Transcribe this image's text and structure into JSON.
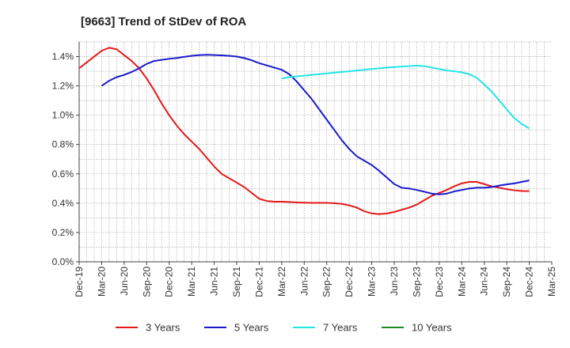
{
  "chart_data": {
    "type": "line",
    "title": "[9663]  Trend of StDev of ROA",
    "xlabel": "",
    "ylabel": "",
    "x_ticks": [
      "Dec-19",
      "Mar-20",
      "Jun-20",
      "Sep-20",
      "Dec-20",
      "Mar-21",
      "Jun-21",
      "Sep-21",
      "Dec-21",
      "Mar-22",
      "Jun-22",
      "Sep-22",
      "Dec-22",
      "Mar-23",
      "Jun-23",
      "Sep-23",
      "Dec-23",
      "Mar-24",
      "Jun-24",
      "Sep-24",
      "Dec-24",
      "Mar-25"
    ],
    "y_ticks": [
      "0.0%",
      "0.2%",
      "0.4%",
      "0.6%",
      "0.8%",
      "1.0%",
      "1.2%",
      "1.4%"
    ],
    "ylim": [
      0,
      1.5
    ],
    "y_unit": "%",
    "grid": true,
    "legend_position": "bottom",
    "series": [
      {
        "name": "3 Years",
        "color": "#e41a1a",
        "points": [
          [
            "Dec-19",
            1.32
          ],
          [
            "Jan-20",
            1.36
          ],
          [
            "Feb-20",
            1.4
          ],
          [
            "Mar-20",
            1.44
          ],
          [
            "Apr-20",
            1.46
          ],
          [
            "May-20",
            1.45
          ],
          [
            "Jun-20",
            1.41
          ],
          [
            "Jul-20",
            1.37
          ],
          [
            "Aug-20",
            1.32
          ],
          [
            "Sep-20",
            1.25
          ],
          [
            "Oct-20",
            1.17
          ],
          [
            "Nov-20",
            1.08
          ],
          [
            "Dec-20",
            1.0
          ],
          [
            "Jan-21",
            0.93
          ],
          [
            "Feb-21",
            0.87
          ],
          [
            "Mar-21",
            0.82
          ],
          [
            "Apr-21",
            0.77
          ],
          [
            "May-21",
            0.71
          ],
          [
            "Jun-21",
            0.65
          ],
          [
            "Jul-21",
            0.6
          ],
          [
            "Aug-21",
            0.57
          ],
          [
            "Sep-21",
            0.54
          ],
          [
            "Oct-21",
            0.51
          ],
          [
            "Nov-21",
            0.47
          ],
          [
            "Dec-21",
            0.43
          ],
          [
            "Jan-22",
            0.415
          ],
          [
            "Feb-22",
            0.41
          ],
          [
            "Mar-22",
            0.41
          ],
          [
            "Apr-22",
            0.408
          ],
          [
            "May-22",
            0.405
          ],
          [
            "Jun-22",
            0.403
          ],
          [
            "Jul-22",
            0.402
          ],
          [
            "Aug-22",
            0.402
          ],
          [
            "Sep-22",
            0.402
          ],
          [
            "Oct-22",
            0.4
          ],
          [
            "Nov-22",
            0.395
          ],
          [
            "Dec-22",
            0.385
          ],
          [
            "Jan-23",
            0.37
          ],
          [
            "Feb-23",
            0.345
          ],
          [
            "Mar-23",
            0.33
          ],
          [
            "Apr-23",
            0.325
          ],
          [
            "May-23",
            0.33
          ],
          [
            "Jun-23",
            0.34
          ],
          [
            "Jul-23",
            0.355
          ],
          [
            "Aug-23",
            0.37
          ],
          [
            "Sep-23",
            0.39
          ],
          [
            "Oct-23",
            0.42
          ],
          [
            "Nov-23",
            0.45
          ],
          [
            "Dec-23",
            0.47
          ],
          [
            "Jan-24",
            0.49
          ],
          [
            "Feb-24",
            0.515
          ],
          [
            "Mar-24",
            0.535
          ],
          [
            "Apr-24",
            0.545
          ],
          [
            "May-24",
            0.545
          ],
          [
            "Jun-24",
            0.53
          ],
          [
            "Jul-24",
            0.515
          ],
          [
            "Aug-24",
            0.505
          ],
          [
            "Sep-24",
            0.495
          ],
          [
            "Oct-24",
            0.488
          ],
          [
            "Nov-24",
            0.483
          ],
          [
            "Dec-24",
            0.482
          ]
        ]
      },
      {
        "name": "5 Years",
        "color": "#1a1acc",
        "points": [
          [
            "Mar-20",
            1.2
          ],
          [
            "Apr-20",
            1.235
          ],
          [
            "May-20",
            1.26
          ],
          [
            "Jun-20",
            1.275
          ],
          [
            "Jul-20",
            1.295
          ],
          [
            "Aug-20",
            1.32
          ],
          [
            "Sep-20",
            1.35
          ],
          [
            "Oct-20",
            1.37
          ],
          [
            "Nov-20",
            1.378
          ],
          [
            "Dec-20",
            1.385
          ],
          [
            "Jan-21",
            1.39
          ],
          [
            "Feb-21",
            1.398
          ],
          [
            "Mar-21",
            1.405
          ],
          [
            "Apr-21",
            1.41
          ],
          [
            "May-21",
            1.412
          ],
          [
            "Jun-21",
            1.41
          ],
          [
            "Jul-21",
            1.408
          ],
          [
            "Aug-21",
            1.405
          ],
          [
            "Sep-21",
            1.4
          ],
          [
            "Oct-21",
            1.39
          ],
          [
            "Nov-21",
            1.375
          ],
          [
            "Dec-21",
            1.355
          ],
          [
            "Jan-22",
            1.34
          ],
          [
            "Feb-22",
            1.325
          ],
          [
            "Mar-22",
            1.31
          ],
          [
            "Apr-22",
            1.28
          ],
          [
            "May-22",
            1.23
          ],
          [
            "Jun-22",
            1.17
          ],
          [
            "Jul-22",
            1.11
          ],
          [
            "Aug-22",
            1.04
          ],
          [
            "Sep-22",
            0.97
          ],
          [
            "Oct-22",
            0.9
          ],
          [
            "Nov-22",
            0.83
          ],
          [
            "Dec-22",
            0.77
          ],
          [
            "Jan-23",
            0.72
          ],
          [
            "Feb-23",
            0.69
          ],
          [
            "Mar-23",
            0.66
          ],
          [
            "Apr-23",
            0.62
          ],
          [
            "May-23",
            0.575
          ],
          [
            "Jun-23",
            0.53
          ],
          [
            "Jul-23",
            0.505
          ],
          [
            "Aug-23",
            0.5
          ],
          [
            "Sep-23",
            0.49
          ],
          [
            "Oct-23",
            0.478
          ],
          [
            "Nov-23",
            0.465
          ],
          [
            "Dec-23",
            0.46
          ],
          [
            "Jan-24",
            0.465
          ],
          [
            "Feb-24",
            0.48
          ],
          [
            "Mar-24",
            0.49
          ],
          [
            "Apr-24",
            0.5
          ],
          [
            "May-24",
            0.505
          ],
          [
            "Jun-24",
            0.505
          ],
          [
            "Jul-24",
            0.51
          ],
          [
            "Aug-24",
            0.52
          ],
          [
            "Sep-24",
            0.528
          ],
          [
            "Oct-24",
            0.535
          ],
          [
            "Nov-24",
            0.545
          ],
          [
            "Dec-24",
            0.555
          ]
        ]
      },
      {
        "name": "7 Years",
        "color": "#22e5e5",
        "points": [
          [
            "Mar-22",
            1.25
          ],
          [
            "Apr-22",
            1.26
          ],
          [
            "May-22",
            1.265
          ],
          [
            "Jun-22",
            1.27
          ],
          [
            "Jul-22",
            1.275
          ],
          [
            "Aug-22",
            1.28
          ],
          [
            "Sep-22",
            1.285
          ],
          [
            "Oct-22",
            1.29
          ],
          [
            "Nov-22",
            1.295
          ],
          [
            "Dec-22",
            1.3
          ],
          [
            "Jan-23",
            1.305
          ],
          [
            "Feb-23",
            1.31
          ],
          [
            "Mar-23",
            1.315
          ],
          [
            "Apr-23",
            1.32
          ],
          [
            "May-23",
            1.325
          ],
          [
            "Jun-23",
            1.328
          ],
          [
            "Jul-23",
            1.332
          ],
          [
            "Aug-23",
            1.335
          ],
          [
            "Sep-23",
            1.338
          ],
          [
            "Oct-23",
            1.335
          ],
          [
            "Nov-23",
            1.325
          ],
          [
            "Dec-23",
            1.315
          ],
          [
            "Jan-24",
            1.305
          ],
          [
            "Feb-24",
            1.3
          ],
          [
            "Mar-24",
            1.292
          ],
          [
            "Apr-24",
            1.28
          ],
          [
            "May-24",
            1.255
          ],
          [
            "Jun-24",
            1.21
          ],
          [
            "Jul-24",
            1.16
          ],
          [
            "Aug-24",
            1.1
          ],
          [
            "Sep-24",
            1.04
          ],
          [
            "Oct-24",
            0.98
          ],
          [
            "Nov-24",
            0.94
          ],
          [
            "Dec-24",
            0.91
          ]
        ]
      },
      {
        "name": "10 Years",
        "color": "#1a8a1a",
        "points": []
      }
    ]
  }
}
